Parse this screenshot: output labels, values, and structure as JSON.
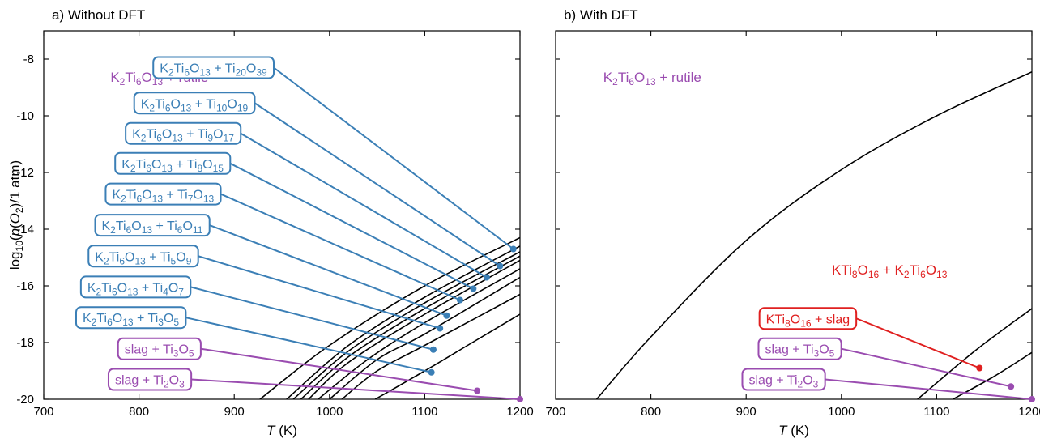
{
  "colors": {
    "blue": "#3b7fb6",
    "purple": "#9a4cb0",
    "red": "#e02020",
    "black": "#000000"
  },
  "ylabel": "log10(p(O2)/1 atm)",
  "chart_data": [
    {
      "type": "line",
      "title": "a) Without DFT",
      "xlabel": "T (K)",
      "ylabel": "log10(p(O2)/1 atm)",
      "xlim": [
        700,
        1200
      ],
      "ylim": [
        -20,
        -7
      ],
      "xticks": [
        700,
        800,
        900,
        1000,
        1100,
        1200
      ],
      "yticks": [
        -8,
        -10,
        -12,
        -14,
        -16,
        -18,
        -20
      ],
      "region_labels": [
        {
          "text": "K2Ti6O13 + rutile",
          "color": "purple",
          "x": 770,
          "y": -8.8
        }
      ],
      "series": [
        {
          "label": "K2Ti6O13 + Ti20O39",
          "color": "blue",
          "marker": [
            1193,
            -14.7
          ],
          "box": [
            815,
            -8.3
          ],
          "points": [
            [
              927,
              -20
            ],
            [
              1000,
              -18.1
            ],
            [
              1100,
              -16.0
            ],
            [
              1200,
              -14.3
            ]
          ]
        },
        {
          "label": "K2Ti6O13 + Ti10O19",
          "color": "blue",
          "marker": [
            1179,
            -15.3
          ],
          "box": [
            795,
            -9.55
          ],
          "points": [
            [
              955,
              -20
            ],
            [
              1020,
              -18.1
            ],
            [
              1100,
              -16.4
            ],
            [
              1200,
              -14.6
            ]
          ]
        },
        {
          "label": "K2Ti6O13 + Ti9O17",
          "color": "blue",
          "marker": [
            1165,
            -15.7
          ],
          "box": [
            786,
            -10.62
          ],
          "points": [
            [
              962,
              -20
            ],
            [
              1020,
              -18.3
            ],
            [
              1100,
              -16.6
            ],
            [
              1200,
              -14.8
            ]
          ]
        },
        {
          "label": "K2Ti6O13 + Ti8O15",
          "color": "blue",
          "marker": [
            1151,
            -16.1
          ],
          "box": [
            775,
            -11.68
          ],
          "points": [
            [
              970,
              -20
            ],
            [
              1020,
              -18.5
            ],
            [
              1100,
              -16.8
            ],
            [
              1200,
              -14.95
            ]
          ]
        },
        {
          "label": "K2Ti6O13 + Ti7O13",
          "color": "blue",
          "marker": [
            1137,
            -16.5
          ],
          "box": [
            765,
            -12.76
          ],
          "points": [
            [
              978,
              -20
            ],
            [
              1020,
              -18.7
            ],
            [
              1100,
              -17.0
            ],
            [
              1200,
              -15.1
            ]
          ]
        },
        {
          "label": "K2Ti6O13 + Ti6O11",
          "color": "blue",
          "marker": [
            1123,
            -17.05
          ],
          "box": [
            754,
            -13.86
          ],
          "points": [
            [
              988,
              -20
            ],
            [
              1040,
              -18.6
            ],
            [
              1100,
              -17.3
            ],
            [
              1200,
              -15.4
            ]
          ]
        },
        {
          "label": "K2Ti6O13 + Ti5O9",
          "color": "blue",
          "marker": [
            1116,
            -17.5
          ],
          "box": [
            747,
            -14.95
          ],
          "points": [
            [
              1000,
              -20
            ],
            [
              1050,
              -18.6
            ],
            [
              1100,
              -17.7
            ],
            [
              1200,
              -15.7
            ]
          ]
        },
        {
          "label": "K2Ti6O13 + Ti4O7",
          "color": "blue",
          "marker": [
            1109,
            -18.25
          ],
          "box": [
            739,
            -16.04
          ],
          "points": [
            [
              1013,
              -20
            ],
            [
              1050,
              -19.0
            ],
            [
              1100,
              -18.1
            ],
            [
              1200,
              -16.3
            ]
          ]
        },
        {
          "label": "K2Ti6O13 + Ti3O5",
          "color": "blue",
          "marker": [
            1107,
            -19.05
          ],
          "box": [
            734,
            -17.12
          ],
          "points": [
            [
              1048,
              -20
            ],
            [
              1100,
              -19.0
            ],
            [
              1150,
              -18.0
            ],
            [
              1200,
              -17.0
            ]
          ]
        },
        {
          "label": "slag + Ti3O5",
          "color": "purple",
          "marker": [
            1155,
            -19.7
          ],
          "box": [
            778,
            -18.22
          ],
          "points": []
        },
        {
          "label": "slag + Ti2O3",
          "color": "purple",
          "marker": [
            1200,
            -20.0
          ],
          "box": [
            768,
            -19.3
          ],
          "points": []
        }
      ]
    },
    {
      "type": "line",
      "title": "b) With DFT",
      "xlabel": "T (K)",
      "xlim": [
        700,
        1200
      ],
      "ylim": [
        -20,
        -7
      ],
      "xticks": [
        700,
        800,
        900,
        1000,
        1100,
        1200
      ],
      "region_labels": [
        {
          "text": "K2Ti6O13 + rutile",
          "color": "purple",
          "x": 750,
          "y": -8.8
        },
        {
          "text": "KTi8O16 + K2Ti6O13",
          "color": "red",
          "x": 990,
          "y": -15.6
        }
      ],
      "series": [
        {
          "label": "",
          "color": "black",
          "points": [
            [
              743,
              -20
            ],
            [
              800,
              -17.8
            ],
            [
              900,
              -14.4
            ],
            [
              1000,
              -11.9
            ],
            [
              1100,
              -10.0
            ],
            [
              1200,
              -8.45
            ]
          ]
        },
        {
          "label": "",
          "color": "black",
          "points": [
            [
              1080,
              -20
            ],
            [
              1140,
              -18.3
            ],
            [
              1200,
              -16.8
            ]
          ]
        },
        {
          "label": "",
          "color": "black",
          "points": [
            [
              1117,
              -20
            ],
            [
              1160,
              -19.2
            ],
            [
              1200,
              -18.35
            ]
          ]
        },
        {
          "label": "KTi8O16 + slag",
          "color": "red",
          "marker": [
            1145,
            -18.9
          ],
          "box": [
            914,
            -17.15
          ],
          "points": []
        },
        {
          "label": "slag + Ti3O5",
          "color": "purple",
          "marker": [
            1178,
            -19.55
          ],
          "box": [
            913,
            -18.22
          ],
          "points": []
        },
        {
          "label": "slag + Ti2O3",
          "color": "purple",
          "marker": [
            1200,
            -20.0
          ],
          "box": [
            896,
            -19.3
          ],
          "points": []
        }
      ]
    }
  ]
}
